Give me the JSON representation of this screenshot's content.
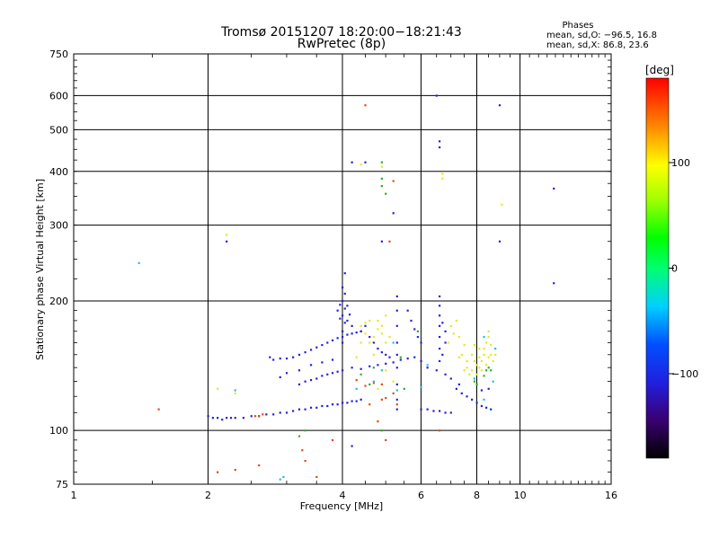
{
  "chart_data": {
    "type": "scatter",
    "title": "Tromsø 20151207 18:20:00−18:21:43",
    "subtitle": "RwPretec (8p)",
    "phases": {
      "heading": "Phases",
      "line_o": "mean, sd,O: −96.5, 16.8",
      "line_x": "mean, sd,X:  86.8, 23.6"
    },
    "xlabel": "Frequency [MHz]",
    "ylabel": "Stationary phase Virtual Height [km]",
    "x_scale": "log",
    "y_scale": "log",
    "xlim": [
      1,
      16
    ],
    "ylim": [
      75,
      750
    ],
    "x_ticks": [
      1,
      2,
      4,
      6,
      8,
      10,
      16
    ],
    "x_tick_labels": [
      "1",
      "2",
      "4",
      "6",
      "8",
      "10",
      "16"
    ],
    "y_ticks": [
      75,
      100,
      200,
      300,
      400,
      500,
      600,
      750
    ],
    "y_tick_labels": [
      "75",
      "100",
      "200",
      "300",
      "400",
      "500",
      "600",
      "750"
    ],
    "grid": true,
    "colorbar": {
      "label": "[deg]",
      "min": -180,
      "max": 180,
      "ticks": [
        100,
        0,
        -100
      ],
      "tick_labels": [
        "100",
        "0",
        "−100"
      ]
    },
    "series": [
      {
        "points": [
          [
            2.0,
            108
          ],
          [
            2.05,
            107
          ],
          [
            2.1,
            107
          ],
          [
            2.15,
            106
          ],
          [
            2.2,
            107
          ],
          [
            2.25,
            107
          ],
          [
            2.3,
            107
          ],
          [
            2.4,
            107
          ],
          [
            2.5,
            108
          ],
          [
            2.6,
            108
          ],
          [
            2.7,
            109
          ],
          [
            2.8,
            109
          ],
          [
            2.9,
            110
          ],
          [
            3.0,
            110
          ],
          [
            3.1,
            111
          ],
          [
            3.2,
            112
          ],
          [
            3.3,
            112
          ],
          [
            3.4,
            113
          ],
          [
            3.5,
            113
          ],
          [
            3.6,
            114
          ],
          [
            3.7,
            114
          ],
          [
            3.8,
            115
          ],
          [
            3.9,
            115
          ],
          [
            4.0,
            116
          ],
          [
            4.1,
            116
          ],
          [
            4.2,
            117
          ],
          [
            4.3,
            117
          ],
          [
            4.4,
            118
          ],
          [
            2.75,
            148
          ],
          [
            2.8,
            146
          ],
          [
            2.9,
            147
          ],
          [
            3.0,
            147
          ],
          [
            3.1,
            148
          ],
          [
            3.2,
            150
          ],
          [
            3.3,
            152
          ],
          [
            3.4,
            154
          ],
          [
            3.5,
            156
          ],
          [
            3.6,
            158
          ],
          [
            3.7,
            160
          ],
          [
            3.8,
            162
          ],
          [
            3.9,
            164
          ],
          [
            4.0,
            165
          ],
          [
            4.1,
            167
          ],
          [
            4.2,
            168
          ],
          [
            4.3,
            169
          ],
          [
            4.4,
            170
          ],
          [
            4.0,
            215
          ],
          [
            4.0,
            200
          ],
          [
            4.0,
            185
          ],
          [
            4.0,
            170
          ],
          [
            4.0,
            160
          ],
          [
            4.05,
            208
          ],
          [
            4.05,
            192
          ],
          [
            4.05,
            178
          ],
          [
            3.95,
            196
          ],
          [
            3.95,
            182
          ],
          [
            3.9,
            190
          ],
          [
            4.1,
            195
          ],
          [
            4.1,
            180
          ],
          [
            4.15,
            186
          ],
          [
            4.2,
            175
          ],
          [
            4.05,
            232
          ],
          [
            3.2,
            128
          ],
          [
            3.3,
            130
          ],
          [
            3.4,
            131
          ],
          [
            3.5,
            132
          ],
          [
            3.6,
            134
          ],
          [
            3.7,
            135
          ],
          [
            3.8,
            136
          ],
          [
            3.9,
            137
          ],
          [
            4.0,
            138
          ],
          [
            4.2,
            140
          ],
          [
            4.4,
            139
          ],
          [
            4.6,
            141
          ],
          [
            4.8,
            142
          ],
          [
            5.0,
            143
          ],
          [
            5.2,
            144
          ],
          [
            5.4,
            146
          ],
          [
            5.6,
            147
          ],
          [
            5.8,
            148
          ],
          [
            5.3,
            205
          ],
          [
            5.3,
            190
          ],
          [
            5.3,
            175
          ],
          [
            5.3,
            160
          ],
          [
            5.3,
            150
          ],
          [
            5.3,
            140
          ],
          [
            5.3,
            128
          ],
          [
            5.3,
            118
          ],
          [
            5.3,
            112
          ],
          [
            5.6,
            190
          ],
          [
            5.7,
            180
          ],
          [
            5.8,
            172
          ],
          [
            5.9,
            165
          ],
          [
            6.0,
            160
          ],
          [
            6.0,
            145
          ],
          [
            6.2,
            140
          ],
          [
            6.5,
            138
          ],
          [
            6.8,
            135
          ],
          [
            7.0,
            132
          ],
          [
            7.3,
            128
          ],
          [
            6.6,
            205
          ],
          [
            6.6,
            195
          ],
          [
            6.6,
            185
          ],
          [
            6.6,
            175
          ],
          [
            6.6,
            165
          ],
          [
            6.6,
            155
          ],
          [
            6.6,
            145
          ],
          [
            6.7,
            178
          ],
          [
            6.7,
            150
          ],
          [
            6.8,
            170
          ],
          [
            6.8,
            160
          ],
          [
            7.2,
            125
          ],
          [
            7.4,
            122
          ],
          [
            7.6,
            120
          ],
          [
            7.8,
            118
          ],
          [
            8.0,
            116
          ],
          [
            8.2,
            114
          ],
          [
            8.4,
            113
          ],
          [
            8.6,
            112
          ],
          [
            6.0,
            112
          ],
          [
            6.2,
            112
          ],
          [
            6.4,
            111
          ],
          [
            6.6,
            111
          ],
          [
            6.8,
            110
          ],
          [
            7.0,
            110
          ],
          [
            4.4,
            170
          ],
          [
            4.5,
            175
          ],
          [
            4.6,
            165
          ],
          [
            4.7,
            160
          ],
          [
            4.8,
            155
          ],
          [
            4.9,
            152
          ],
          [
            5.0,
            150
          ],
          [
            5.1,
            148
          ],
          [
            3.2,
            138
          ],
          [
            3.4,
            142
          ],
          [
            3.6,
            144
          ],
          [
            3.8,
            146
          ],
          [
            3.0,
            136
          ],
          [
            2.9,
            133
          ],
          [
            4.2,
            420
          ],
          [
            6.6,
            470
          ],
          [
            6.6,
            455
          ],
          [
            9.0,
            570
          ],
          [
            5.2,
            320
          ],
          [
            4.5,
            420
          ],
          [
            11.9,
            365
          ],
          [
            9.0,
            275
          ],
          [
            11.9,
            220
          ],
          [
            2.2,
            275
          ],
          [
            4.2,
            92
          ],
          [
            6.5,
            600
          ],
          [
            4.9,
            275
          ],
          [
            8.5,
            125
          ],
          [
            8.2,
            124
          ]
        ]
      },
      {
        "points": [
          [
            2.55,
            108
          ],
          [
            2.6,
            108
          ],
          [
            2.65,
            109
          ],
          [
            4.6,
            115
          ],
          [
            4.9,
            118
          ],
          [
            5.2,
            122
          ],
          [
            5.0,
            95
          ],
          [
            5.3,
            115
          ],
          [
            4.5,
            127
          ],
          [
            4.3,
            131
          ],
          [
            4.7,
            129
          ],
          [
            1.55,
            112
          ],
          [
            2.1,
            80
          ],
          [
            2.3,
            81
          ],
          [
            2.6,
            83
          ],
          [
            3.3,
            85
          ],
          [
            3.5,
            78
          ],
          [
            3.25,
            90
          ],
          [
            4.5,
            570
          ],
          [
            5.2,
            380
          ],
          [
            5.1,
            275
          ],
          [
            3.8,
            95
          ],
          [
            6.6,
            100
          ],
          [
            4.8,
            105
          ],
          [
            4.9,
            128
          ],
          [
            5.0,
            119
          ]
        ]
      },
      {
        "points": [
          [
            4.4,
            175
          ],
          [
            4.5,
            168
          ],
          [
            4.6,
            160
          ],
          [
            4.7,
            165
          ],
          [
            4.8,
            172
          ],
          [
            4.9,
            168
          ],
          [
            5.0,
            160
          ],
          [
            4.5,
            178
          ],
          [
            4.6,
            180
          ],
          [
            4.8,
            180
          ],
          [
            5.0,
            185
          ],
          [
            4.4,
            160
          ],
          [
            5.1,
            165
          ],
          [
            4.7,
            150
          ],
          [
            4.9,
            175
          ],
          [
            7.0,
            175
          ],
          [
            7.2,
            180
          ],
          [
            7.1,
            168
          ],
          [
            7.3,
            165
          ],
          [
            6.9,
            160
          ],
          [
            7.5,
            158
          ],
          [
            7.4,
            150
          ],
          [
            7.6,
            145
          ],
          [
            7.3,
            148
          ],
          [
            7.8,
            150
          ],
          [
            7.9,
            145
          ],
          [
            8.0,
            142
          ],
          [
            8.1,
            140
          ],
          [
            8.2,
            145
          ],
          [
            8.3,
            155
          ],
          [
            8.4,
            160
          ],
          [
            8.5,
            165
          ],
          [
            8.3,
            150
          ],
          [
            8.1,
            148
          ],
          [
            7.6,
            140
          ],
          [
            7.8,
            138
          ],
          [
            8.0,
            135
          ],
          [
            8.2,
            138
          ],
          [
            8.4,
            142
          ],
          [
            8.5,
            148
          ],
          [
            8.6,
            150
          ],
          [
            7.5,
            138
          ],
          [
            7.7,
            135
          ],
          [
            8.7,
            145
          ],
          [
            8.8,
            150
          ],
          [
            8.6,
            158
          ],
          [
            8.5,
            170
          ],
          [
            8.1,
            155
          ],
          [
            7.9,
            158
          ],
          [
            6.7,
            385
          ],
          [
            6.7,
            395
          ],
          [
            4.9,
            410
          ],
          [
            4.4,
            415
          ],
          [
            2.2,
            285
          ],
          [
            2.1,
            125
          ],
          [
            2.3,
            122
          ],
          [
            5.0,
            138
          ],
          [
            4.3,
            148
          ],
          [
            9.1,
            335
          ],
          [
            4.8,
            125
          ],
          [
            5.2,
            130
          ]
        ]
      },
      {
        "points": [
          [
            4.9,
            420
          ],
          [
            4.9,
            370
          ],
          [
            4.9,
            385
          ],
          [
            5.0,
            355
          ],
          [
            4.6,
            128
          ],
          [
            4.4,
            135
          ],
          [
            3.3,
            100
          ],
          [
            3.2,
            97
          ],
          [
            4.9,
            100
          ],
          [
            5.5,
            125
          ],
          [
            7.9,
            130
          ],
          [
            8.0,
            128
          ],
          [
            8.3,
            134
          ],
          [
            8.4,
            138
          ],
          [
            5.9,
            170
          ],
          [
            5.4,
            148
          ],
          [
            4.7,
            140
          ],
          [
            8.6,
            138
          ],
          [
            8.5,
            140
          ]
        ]
      },
      {
        "points": [
          [
            1.4,
            245
          ],
          [
            4.7,
            130
          ],
          [
            5.2,
            160
          ],
          [
            2.3,
            124
          ],
          [
            4.9,
            138
          ],
          [
            7.9,
            132
          ],
          [
            8.3,
            165
          ],
          [
            6.0,
            126
          ],
          [
            5.3,
            124
          ],
          [
            8.8,
            155
          ],
          [
            8.7,
            130
          ],
          [
            2.9,
            77
          ],
          [
            2.95,
            78
          ],
          [
            8.3,
            118
          ],
          [
            4.3,
            125
          ],
          [
            6.2,
            142
          ]
        ]
      }
    ]
  }
}
